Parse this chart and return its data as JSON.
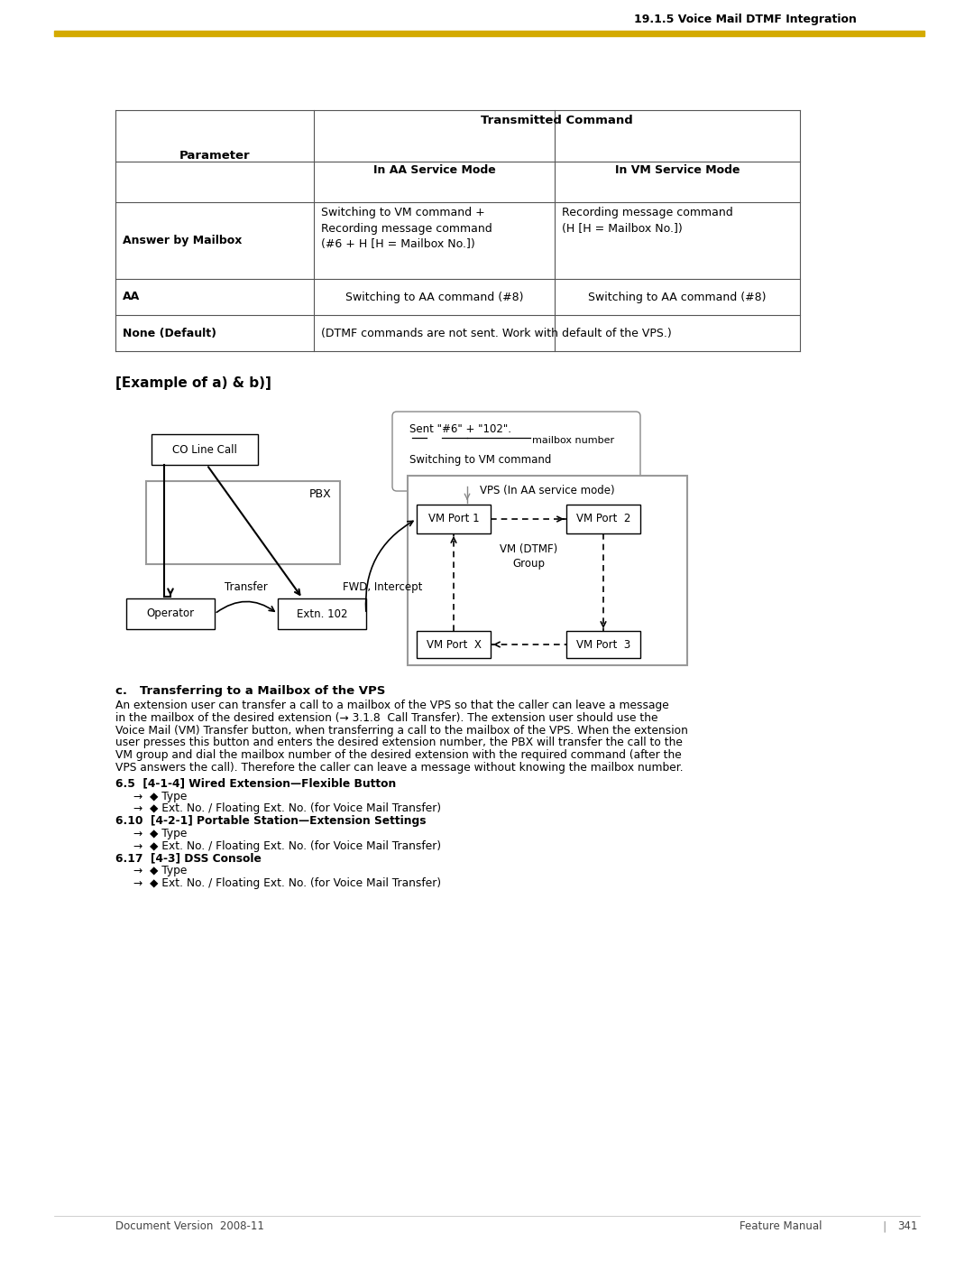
{
  "page_title": "19.1.5 Voice Mail DTMF Integration",
  "footer_left": "Document Version  2008-11",
  "footer_right": "Feature Manual",
  "footer_page": "341",
  "gold_color": "#D4AA00"
}
